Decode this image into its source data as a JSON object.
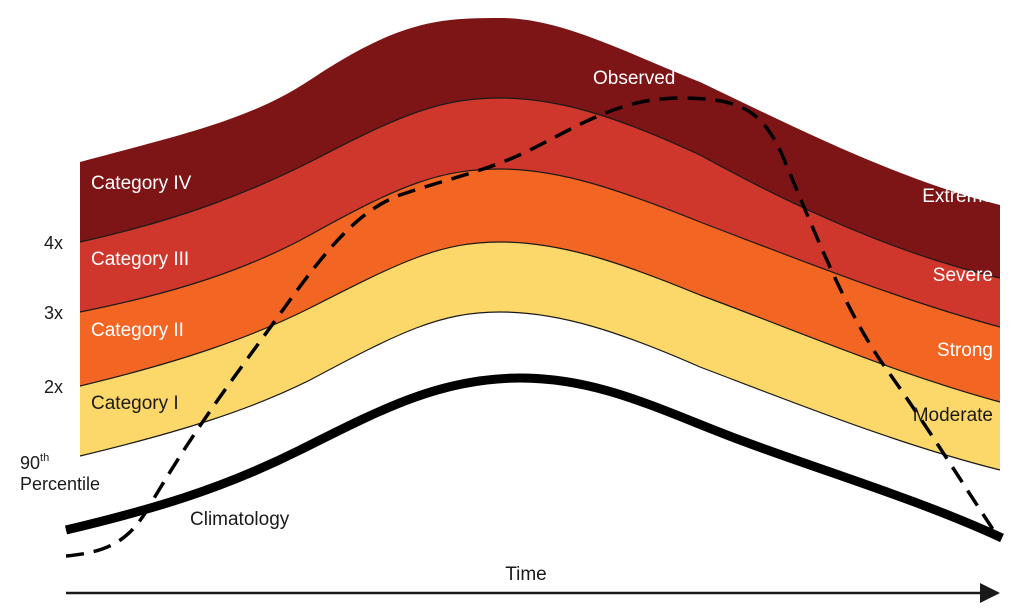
{
  "colors": {
    "category_iv": "#7d1416",
    "category_iii": "#cf372c",
    "category_ii": "#f26522",
    "category_i": "#fcd86a",
    "outline": "#1a1a1a",
    "background": "#ffffff"
  },
  "bands": [
    {
      "left_label": "Category IV",
      "right_label": "Extreme"
    },
    {
      "left_label": "Category III",
      "right_label": "Severe"
    },
    {
      "left_label": "Category II",
      "right_label": "Strong"
    },
    {
      "left_label": "Category I",
      "right_label": "Moderate"
    }
  ],
  "thresholds": {
    "t4": "4x",
    "t3": "3x",
    "t2": "2x",
    "percentile_top": "90",
    "percentile_sup": "th",
    "percentile_bottom": "Percentile"
  },
  "lines": {
    "climatology": "Climatology",
    "observed": "Observed"
  },
  "axis": {
    "x_label": "Time"
  }
}
